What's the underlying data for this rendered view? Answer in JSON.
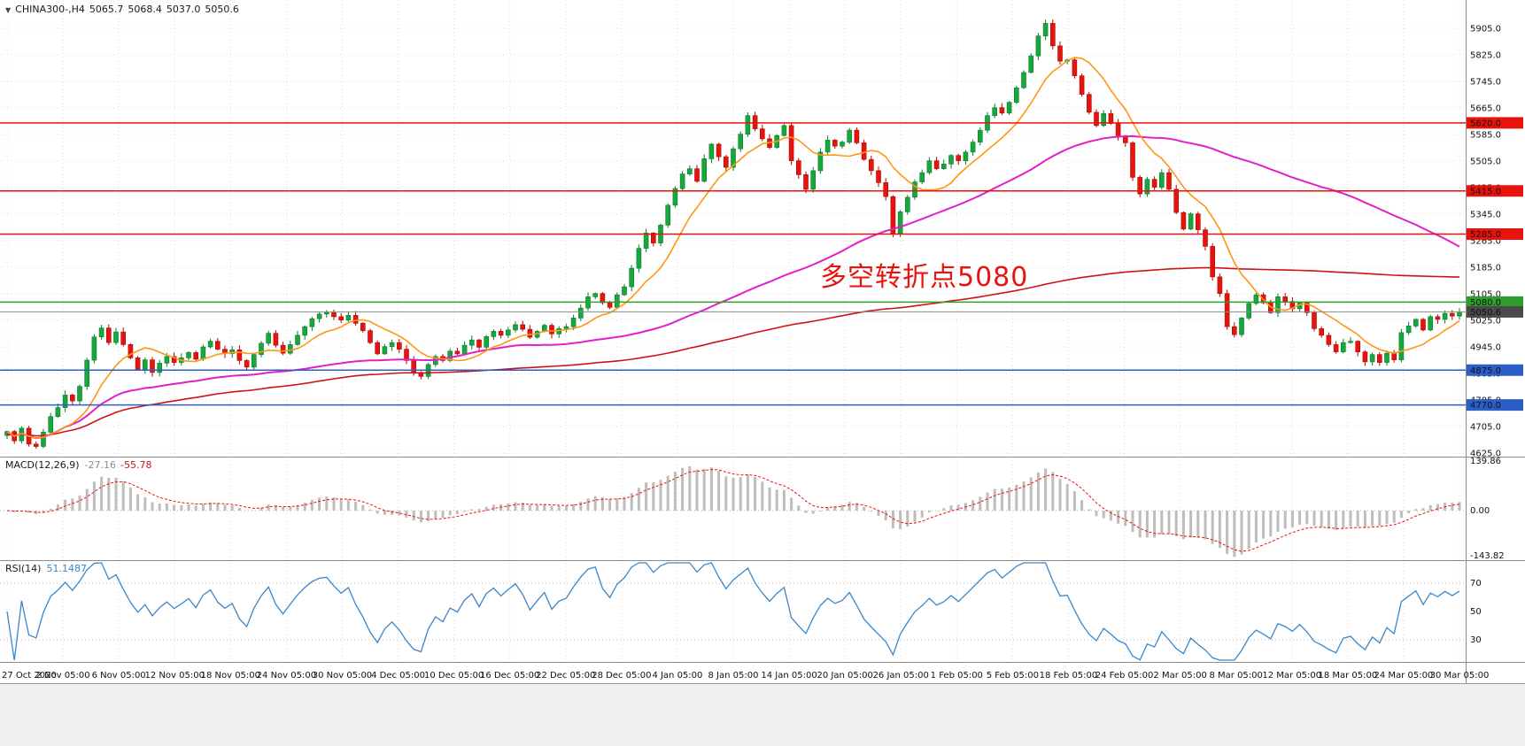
{
  "header": {
    "dropdown_icon": "▼",
    "symbol": "CHINA300-,H4",
    "open": "5065.7",
    "high": "5068.4",
    "low": "5037.0",
    "close": "5050.6"
  },
  "chart_data": {
    "type": "candlestick",
    "symbol": "CHINA300-,H4",
    "timeframe": "H4",
    "annotation": {
      "text": "多空转折点5080",
      "color": "#e8130c"
    },
    "x_labels": [
      "27 Oct 2020",
      "2 Nov 05:00",
      "6 Nov 05:00",
      "12 Nov 05:00",
      "18 Nov 05:00",
      "24 Nov 05:00",
      "30 Nov 05:00",
      "4 Dec 05:00",
      "10 Dec 05:00",
      "16 Dec 05:00",
      "22 Dec 05:00",
      "28 Dec 05:00",
      "4 Jan 05:00",
      "8 Jan 05:00",
      "14 Jan 05:00",
      "20 Jan 05:00",
      "26 Jan 05:00",
      "1 Feb 05:00",
      "5 Feb 05:00",
      "18 Feb 05:00",
      "24 Feb 05:00",
      "2 Mar 05:00",
      "8 Mar 05:00",
      "12 Mar 05:00",
      "18 Mar 05:00",
      "24 Mar 05:00",
      "30 Mar 05:00"
    ],
    "price_axis": {
      "ticks": [
        5905.0,
        5825.0,
        5745.0,
        5665.0,
        5585.0,
        5505.0,
        5425.0,
        5345.0,
        5265.0,
        5185.0,
        5105.0,
        5025.0,
        4945.0,
        4865.0,
        4785.0,
        4705.0,
        4625.0
      ],
      "decimals": 1
    },
    "candles": {
      "note": "approximate H4 closes read from chart, left to right",
      "closes": [
        4690,
        4662,
        4700,
        4652,
        4645,
        4688,
        4735,
        4762,
        4800,
        4782,
        4826,
        4905,
        4975,
        5002,
        4958,
        4990,
        4952,
        4912,
        4878,
        4906,
        4868,
        4896,
        4916,
        4898,
        4912,
        4928,
        4908,
        4945,
        4962,
        4938,
        4925,
        4936,
        4904,
        4884,
        4922,
        4956,
        4986,
        4950,
        4926,
        4952,
        4980,
        5006,
        5030,
        5044,
        5048,
        5036,
        5026,
        5040,
        5016,
        4994,
        4958,
        4924,
        4946,
        4958,
        4938,
        4904,
        4868,
        4856,
        4892,
        4916,
        4904,
        4932,
        4924,
        4950,
        4966,
        4944,
        4976,
        4992,
        4980,
        4996,
        5012,
        4998,
        4974,
        4992,
        5010,
        4984,
        5000,
        5006,
        5032,
        5062,
        5096,
        5106,
        5078,
        5064,
        5102,
        5126,
        5182,
        5242,
        5288,
        5258,
        5312,
        5372,
        5422,
        5466,
        5482,
        5444,
        5512,
        5556,
        5518,
        5486,
        5542,
        5586,
        5642,
        5602,
        5572,
        5546,
        5582,
        5612,
        5506,
        5464,
        5420,
        5476,
        5532,
        5568,
        5550,
        5562,
        5598,
        5560,
        5510,
        5476,
        5440,
        5398,
        5286,
        5352,
        5396,
        5442,
        5470,
        5506,
        5482,
        5496,
        5522,
        5506,
        5532,
        5562,
        5598,
        5642,
        5666,
        5650,
        5682,
        5726,
        5772,
        5822,
        5882,
        5920,
        5852,
        5806,
        5810,
        5762,
        5706,
        5652,
        5612,
        5648,
        5618,
        5580,
        5560,
        5456,
        5406,
        5450,
        5426,
        5470,
        5420,
        5350,
        5300,
        5346,
        5298,
        5248,
        5156,
        5106,
        5006,
        4982,
        5032,
        5076,
        5102,
        5078,
        5048,
        5096,
        5082,
        5060,
        5078,
        5048,
        5000,
        4980,
        4952,
        4930,
        4958,
        4962,
        4930,
        4900,
        4922,
        4898,
        4926,
        4906,
        4988,
        5008,
        5028,
        4996,
        5036,
        5028,
        5046,
        5038,
        5050.6
      ]
    },
    "levels": [
      {
        "price": 5620.0,
        "label": "5620.0",
        "color": "#e8130c",
        "type": "resistance"
      },
      {
        "price": 5415.0,
        "label": "5415.0",
        "color": "#e8130c",
        "type": "resistance"
      },
      {
        "price": 5285.0,
        "label": "5285.0",
        "color": "#e8130c",
        "type": "resistance"
      },
      {
        "price": 5080.0,
        "label": "5080.0",
        "color": "#2f9e2f",
        "type": "pivot"
      },
      {
        "price": 4875.0,
        "label": "4875.0",
        "color": "#2b5fc7",
        "type": "support"
      },
      {
        "price": 4770.0,
        "label": "4770.0",
        "color": "#2b5fc7",
        "type": "support"
      }
    ],
    "current_price": {
      "value": 5050.6,
      "label": "5050.6"
    },
    "moving_averages": [
      {
        "name": "fast",
        "color": "#ff9614"
      },
      {
        "name": "mid",
        "color": "#e320c8"
      },
      {
        "name": "slow",
        "color": "#cc1414"
      }
    ],
    "macd": {
      "label": "MACD(12,26,9)",
      "main_value": "-27.16",
      "signal_value": "-55.78",
      "axis_labels": [
        "139.86",
        "0.00",
        "-143.82"
      ]
    },
    "rsi": {
      "label": "RSI(14)",
      "value": "51.1487",
      "axis_labels": [
        "70",
        "50",
        "30"
      ],
      "level_lines": [
        70,
        30
      ]
    },
    "colors": {
      "up": "#16a83c",
      "up_edge": "#0d7a2c",
      "down": "#e8130c",
      "down_edge": "#a80b06",
      "ma_fast": "#ff9614",
      "ma_mid": "#e320c8",
      "ma_slow": "#cc1414",
      "macd_hist": "#bdbdbd",
      "macd_signal": "#e8130c",
      "rsi_line": "#3a86c8",
      "current": "#888888",
      "grid": "#dcdcdc",
      "separator": "#8c8c8c"
    }
  }
}
